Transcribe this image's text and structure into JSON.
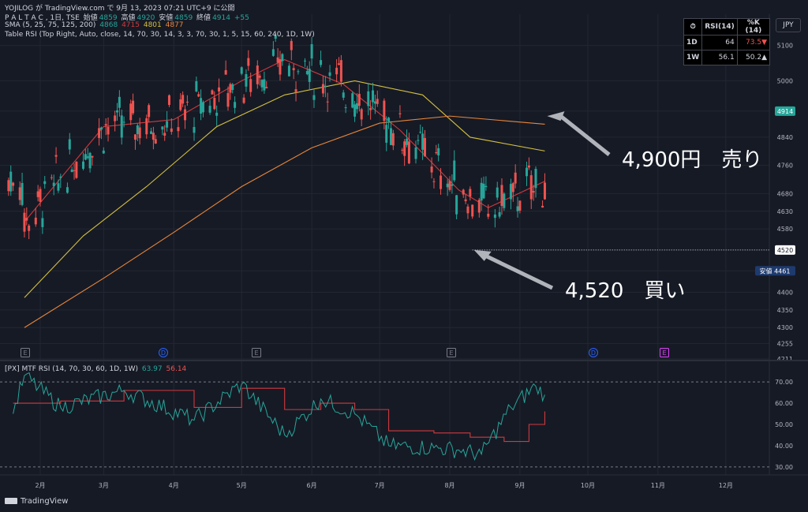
{
  "header": {
    "line1": "YOJILOG が TradingView.com で 9月 13, 2023 07:21 UTC+9 に公開",
    "line2_symbol": "P A L T A C , 1日, TSE",
    "line2_open_label": "始値",
    "line2_open": "4859",
    "line2_high_label": "高値",
    "line2_high": "4920",
    "line2_low_label": "安値",
    "line2_low": "4859",
    "line2_close_label": "終値",
    "line2_close": "4914",
    "line2_change": "+55",
    "line3_label": "SMA (5, 25, 75, 125, 200)",
    "sma_values": [
      "4868",
      "4715",
      "4801",
      "4877"
    ],
    "line4": "Table RSI (Top Right, Auto, close, 14, 70, 30, 14, 3, 3, 70, 30, 1, 5, 15, 60, 240, 1D, 1W)"
  },
  "currency": "JPY",
  "rsi_table": {
    "headers": [
      "RSI(14)",
      "%K (14)"
    ],
    "rows": [
      {
        "tf": "1D",
        "rsi": "64",
        "k": "73.5▼"
      },
      {
        "tf": "1W",
        "rsi": "56.1",
        "k": "50.2▲"
      }
    ]
  },
  "annotations": {
    "sell_label": "4,900円　売り",
    "buy_label": "4,520　買い"
  },
  "price_badges": {
    "last": "4914",
    "level": "4520",
    "low_label": "安値",
    "low": "4461"
  },
  "events": [
    "E",
    "D",
    "E",
    "E",
    "D",
    "E"
  ],
  "sub_header": {
    "label": "[PX] MTF RSI (14, 70, 30, 60, 1D, 1W)",
    "v1": "63.97",
    "v2": "56.14"
  },
  "footer": {
    "brand": "TradingView"
  },
  "colors": {
    "bg": "#161a25",
    "up": "#26a69a",
    "down": "#ef5350",
    "sma5": "#26a69a",
    "sma25": "#d0393e",
    "sma75": "#d4c040",
    "sma125": "#e8863a",
    "sma200": "#d4693a",
    "rsi_daily": "#26a69a",
    "rsi_weekly": "#d0393e"
  },
  "chart_data": [
    {
      "type": "candlestick",
      "title": "P A L T A C , 1日, TSE",
      "x_ticks": [
        "2月",
        "3月",
        "4月",
        "5月",
        "6月",
        "7月",
        "8月",
        "9月",
        "10月",
        "11月",
        "12月"
      ],
      "y_ticks": [
        5100,
        5000,
        4914,
        4840,
        4760,
        4680,
        4630,
        4580,
        4520,
        4461,
        4400,
        4350,
        4300,
        4255,
        4211
      ],
      "ylim": [
        4211,
        5180
      ],
      "series": [
        {
          "name": "SMA 25",
          "x": [
            "2023-01-25",
            "2023-03-01",
            "2023-04-01",
            "2023-05-01",
            "2023-05-20",
            "2023-06-15",
            "2023-07-10",
            "2023-08-05",
            "2023-08-18",
            "2023-09-12"
          ],
          "values": [
            4600,
            4870,
            4890,
            5000,
            5060,
            4990,
            4860,
            4690,
            4640,
            4715
          ]
        },
        {
          "name": "SMA 75",
          "x": [
            "2023-01-25",
            "2023-02-20",
            "2023-03-20",
            "2023-04-20",
            "2023-05-20",
            "2023-06-20",
            "2023-07-20",
            "2023-08-10",
            "2023-09-12"
          ],
          "values": [
            4385,
            4560,
            4700,
            4870,
            4960,
            5000,
            4960,
            4840,
            4801
          ]
        },
        {
          "name": "SMA 125",
          "x": [
            "2023-01-25",
            "2023-03-01",
            "2023-04-01",
            "2023-05-01",
            "2023-06-01",
            "2023-07-01",
            "2023-08-01",
            "2023-09-12"
          ],
          "values": [
            4300,
            4440,
            4570,
            4700,
            4810,
            4880,
            4900,
            4877
          ]
        }
      ],
      "markers": [
        {
          "label": "4,900円　売り",
          "price": 4900
        },
        {
          "label": "4,520　買い",
          "price": 4520
        }
      ]
    },
    {
      "type": "line",
      "title": "[PX] MTF RSI (14, 70, 30, 60, 1D, 1W)",
      "y_ticks": [
        70,
        60,
        50,
        40,
        30
      ],
      "ylim": [
        27,
        73
      ],
      "series": [
        {
          "name": "1D",
          "x": [
            "2023-01-20",
            "2023-01-25",
            "2023-02-10",
            "2023-03-10",
            "2023-04-10",
            "2023-05-01",
            "2023-05-20",
            "2023-06-05",
            "2023-06-20",
            "2023-07-05",
            "2023-07-25",
            "2023-08-05",
            "2023-08-15",
            "2023-08-28",
            "2023-09-08",
            "2023-09-12"
          ],
          "values": [
            55,
            73,
            58,
            66,
            52,
            69,
            45,
            62,
            55,
            40,
            39,
            38,
            36,
            58,
            68,
            63.97
          ]
        },
        {
          "name": "1W",
          "x": [
            "2023-01-20",
            "2023-02-10",
            "2023-03-10",
            "2023-04-10",
            "2023-05-01",
            "2023-05-20",
            "2023-06-05",
            "2023-06-20",
            "2023-07-05",
            "2023-07-25",
            "2023-08-10",
            "2023-08-25",
            "2023-09-05",
            "2023-09-12"
          ],
          "values": [
            60,
            61,
            66,
            58,
            67,
            57,
            60,
            57,
            47,
            46,
            44,
            42,
            50,
            56.14
          ]
        }
      ]
    }
  ]
}
